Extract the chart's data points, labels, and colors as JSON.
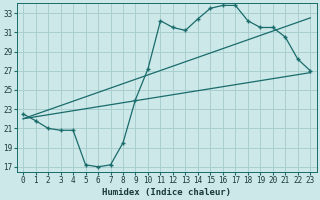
{
  "xlabel": "Humidex (Indice chaleur)",
  "ylabel": "",
  "bg_color": "#cce8e8",
  "grid_color": "#aacfcf",
  "line_color": "#1a6b6b",
  "xlim": [
    -0.5,
    23.5
  ],
  "ylim": [
    16.5,
    34.0
  ],
  "xticks": [
    0,
    1,
    2,
    3,
    4,
    5,
    6,
    7,
    8,
    9,
    10,
    11,
    12,
    13,
    14,
    15,
    16,
    17,
    18,
    19,
    20,
    21,
    22,
    23
  ],
  "yticks": [
    17,
    19,
    21,
    23,
    25,
    27,
    29,
    31,
    33
  ],
  "curve1_x": [
    0,
    1,
    2,
    3,
    4,
    5,
    6,
    7,
    8,
    9,
    10,
    11,
    12,
    13,
    14,
    15,
    16,
    17,
    18,
    19,
    20,
    21,
    22,
    23
  ],
  "curve1_y": [
    22.5,
    21.8,
    21.0,
    20.8,
    20.8,
    17.2,
    17.0,
    17.2,
    19.5,
    24.0,
    27.2,
    32.2,
    31.5,
    31.2,
    32.4,
    33.5,
    33.8,
    33.8,
    32.2,
    31.5,
    31.5,
    30.5,
    28.2,
    27.0
  ],
  "line1_x": [
    0,
    23
  ],
  "line1_y": [
    22.0,
    32.5
  ],
  "line2_x": [
    0,
    23
  ],
  "line2_y": [
    22.0,
    26.8
  ]
}
